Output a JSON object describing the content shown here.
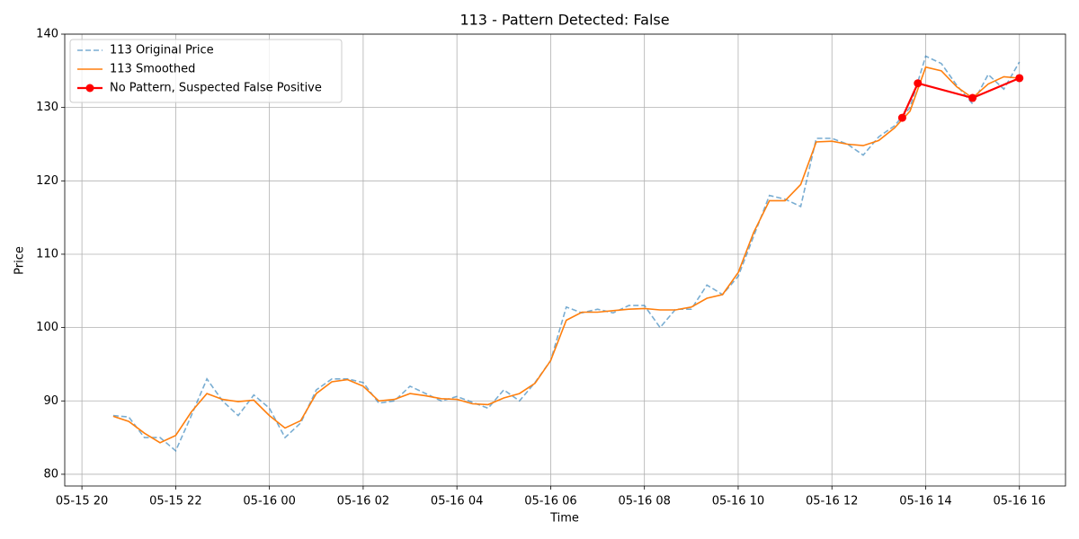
{
  "chart_data": {
    "type": "line",
    "title": "113 - Pattern Detected: False",
    "xlabel": "Time",
    "ylabel": "Price",
    "x": [
      "05-15 20:40",
      "05-15 21:00",
      "05-15 21:20",
      "05-15 21:40",
      "05-15 22:00",
      "05-15 22:20",
      "05-15 22:40",
      "05-15 23:00",
      "05-15 23:20",
      "05-15 23:40",
      "05-16 00:00",
      "05-16 00:20",
      "05-16 00:40",
      "05-16 01:00",
      "05-16 01:20",
      "05-16 01:40",
      "05-16 02:00",
      "05-16 02:20",
      "05-16 02:40",
      "05-16 03:00",
      "05-16 03:20",
      "05-16 03:40",
      "05-16 04:00",
      "05-16 04:20",
      "05-16 04:40",
      "05-16 05:00",
      "05-16 05:20",
      "05-16 05:40",
      "05-16 06:00",
      "05-16 06:20",
      "05-16 06:40",
      "05-16 07:00",
      "05-16 07:20",
      "05-16 07:40",
      "05-16 08:00",
      "05-16 08:20",
      "05-16 08:40",
      "05-16 09:00",
      "05-16 09:20",
      "05-16 09:40",
      "05-16 10:00",
      "05-16 10:20",
      "05-16 10:40",
      "05-16 11:00",
      "05-16 11:20",
      "05-16 11:40",
      "05-16 12:00",
      "05-16 12:20",
      "05-16 12:40",
      "05-16 13:00",
      "05-16 13:20",
      "05-16 13:40",
      "05-16 14:00",
      "05-16 14:20",
      "05-16 14:40",
      "05-16 15:00",
      "05-16 15:20",
      "05-16 15:40",
      "05-16 16:00"
    ],
    "series": [
      {
        "name": "113 Original Price",
        "color": "#1f77b4",
        "linestyle": "dashed",
        "values": [
          88,
          87.8,
          85,
          85,
          83.2,
          88,
          93,
          90,
          88,
          90.8,
          89,
          85,
          87,
          91.5,
          93,
          93,
          92.5,
          89.7,
          90,
          92,
          91,
          90,
          90.6,
          89.8,
          89,
          91.5,
          90,
          92.5,
          95.5,
          102.8,
          102,
          102.5,
          102,
          103,
          103,
          100,
          102.5,
          102.5,
          105.8,
          104.5,
          107,
          112.5,
          118,
          117.5,
          116.5,
          125.8,
          125.8,
          125,
          123.5,
          126,
          127.5,
          130,
          137,
          136,
          133,
          130.5,
          134.5,
          132.5,
          136.2
        ]
      },
      {
        "name": "113 Smoothed",
        "color": "#ff7f0e",
        "linestyle": "solid",
        "values": [
          87.9,
          87.2,
          85.6,
          84.3,
          85.3,
          88.5,
          91,
          90.2,
          89.9,
          90.1,
          88,
          86.3,
          87.3,
          91,
          92.6,
          92.9,
          92,
          90,
          90.2,
          91,
          90.7,
          90.3,
          90.2,
          89.6,
          89.5,
          90.4,
          91,
          92.4,
          95.5,
          101,
          102.1,
          102.1,
          102.3,
          102.5,
          102.6,
          102.4,
          102.4,
          102.8,
          104,
          104.5,
          107.5,
          113,
          117.3,
          117.3,
          119.5,
          125.3,
          125.4,
          125,
          124.8,
          125.5,
          127.2,
          129.5,
          135.5,
          135,
          132.8,
          131.3,
          133.2,
          134.2,
          134
        ]
      },
      {
        "name": "No Pattern, Suspected False Positive",
        "color": "#ff0000",
        "linestyle": "solid",
        "marker": "circle",
        "x": [
          "05-16 13:30",
          "05-16 13:50",
          "05-16 15:00",
          "05-16 16:00"
        ],
        "values": [
          128.6,
          133.3,
          131.3,
          134.0
        ]
      }
    ],
    "xlim": [
      "05-15 19:38",
      "05-16 16:59"
    ],
    "xticks": [
      "05-15 20",
      "05-15 22",
      "05-16 00",
      "05-16 02",
      "05-16 04",
      "05-16 06",
      "05-16 08",
      "05-16 10",
      "05-16 12",
      "05-16 14",
      "05-16 16"
    ],
    "ylim": [
      78.4,
      140
    ],
    "yticks": [
      80,
      90,
      100,
      110,
      120,
      130,
      140
    ],
    "grid": true,
    "legend": "upper left"
  }
}
